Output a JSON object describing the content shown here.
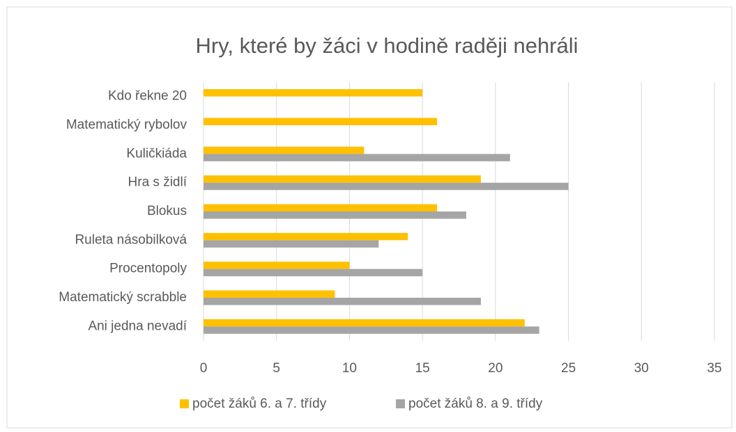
{
  "chart_data": {
    "type": "hbar",
    "title": "Hry, které by žáci v hodině raději nehráli",
    "categories": [
      "Kdo řekne 20",
      "Matematický rybolov",
      "Kuličkiáda",
      "Hra s židlí",
      "Blokus",
      "Ruleta násobilková",
      "Procentopoly",
      "Matematický scrabble",
      "Ani jedna nevadí"
    ],
    "series": [
      {
        "name": "počet žáků 6. a 7. třídy",
        "color": "#ffc000",
        "values": [
          15,
          16,
          11,
          19,
          16,
          14,
          10,
          9,
          22
        ]
      },
      {
        "name": "počet žáků 8. a 9. třídy",
        "color": "#a5a5a5",
        "values": [
          null,
          null,
          21,
          25,
          18,
          12,
          15,
          19,
          23
        ]
      }
    ],
    "xlim": [
      0,
      35
    ],
    "xticks": [
      0,
      5,
      10,
      15,
      20,
      25,
      30,
      35
    ],
    "grid": true,
    "legend": "bottom"
  }
}
